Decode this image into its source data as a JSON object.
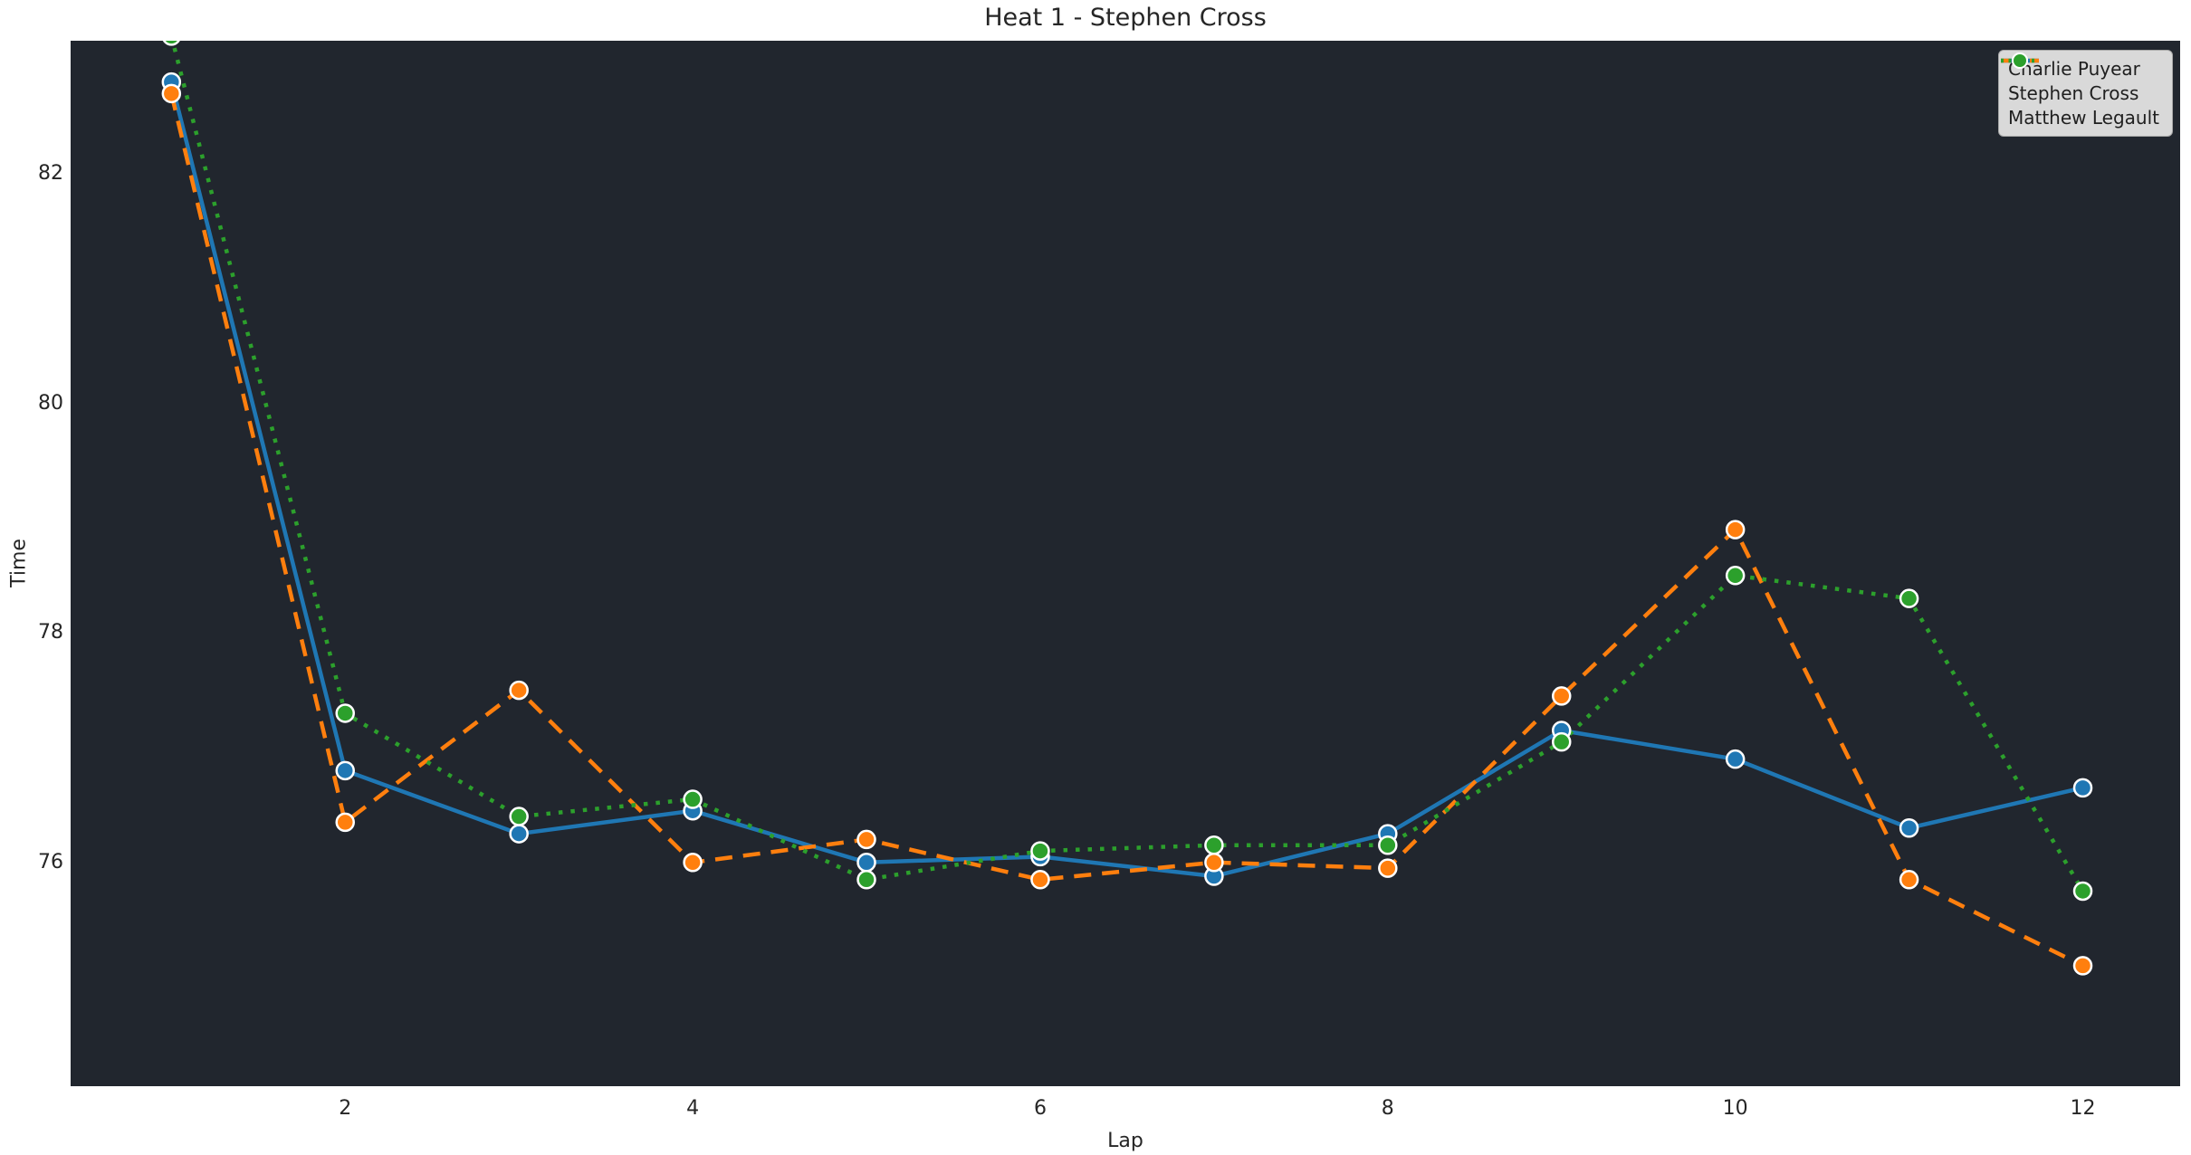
{
  "figure": {
    "colors": {
      "page_bg": "#ffffff",
      "plot_bg": "#21262e",
      "text": "#262626",
      "legend_bg": "#d9d9d9",
      "legend_border": "#a8a8a8",
      "marker_edge": "#ffffff"
    }
  },
  "chart_data": {
    "type": "line",
    "title": "Heat 1 - Stephen Cross",
    "xlabel": "Lap",
    "ylabel": "Time",
    "x": [
      1,
      2,
      3,
      4,
      5,
      6,
      7,
      8,
      9,
      10,
      11,
      12
    ],
    "xticks": [
      2,
      4,
      6,
      8,
      10,
      12
    ],
    "yticks": [
      76,
      78,
      80,
      82
    ],
    "xlim": [
      0.42,
      12.56
    ],
    "ylim": [
      74.05,
      83.16
    ],
    "grid": false,
    "legend_position": "upper right",
    "series": [
      {
        "name": "Charlie Puyear",
        "color": "#1f77b4",
        "style": "solid",
        "marker": "circle",
        "values": [
          82.8,
          76.8,
          76.25,
          76.45,
          76.0,
          76.05,
          75.88,
          76.25,
          77.15,
          76.9,
          76.3,
          76.65
        ]
      },
      {
        "name": "Stephen Cross",
        "color": "#ff7f0e",
        "style": "dashed",
        "marker": "circle",
        "values": [
          82.7,
          76.35,
          77.5,
          76.0,
          76.2,
          75.85,
          76.0,
          75.95,
          77.45,
          78.9,
          75.85,
          75.1
        ]
      },
      {
        "name": "Matthew Legault",
        "color": "#2ca02c",
        "style": "dotted",
        "marker": "circle",
        "values": [
          83.2,
          77.3,
          76.4,
          76.55,
          75.85,
          76.1,
          76.15,
          76.15,
          77.05,
          78.5,
          78.3,
          75.75
        ]
      }
    ]
  }
}
